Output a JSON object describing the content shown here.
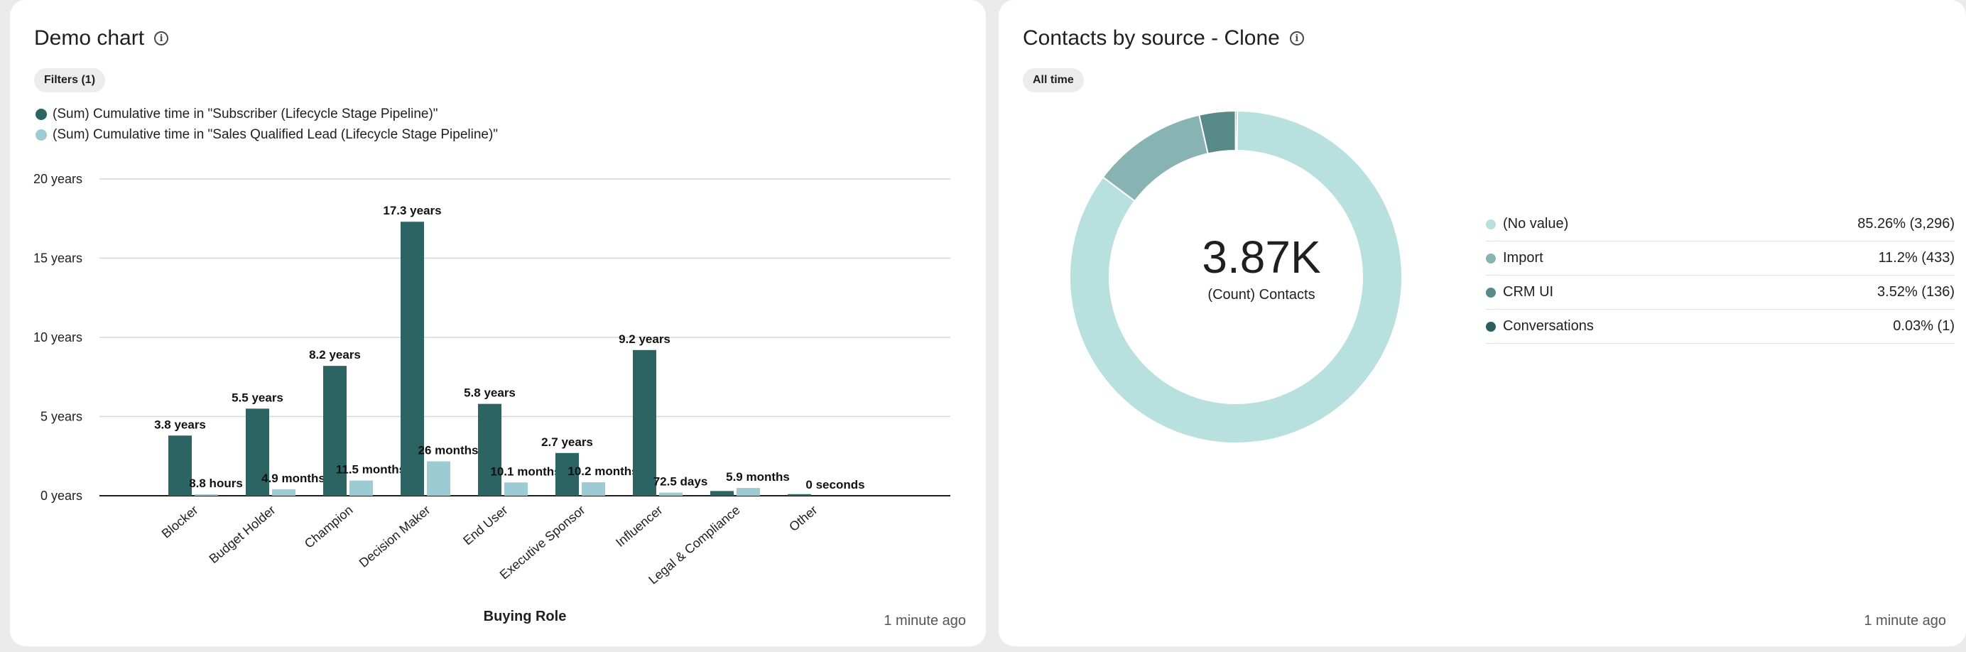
{
  "left_card": {
    "title": "Demo chart",
    "filter_label": "Filters (1)",
    "updated": "1 minute ago"
  },
  "right_card": {
    "title": "Contacts by source - Clone",
    "filter_label": "All time",
    "updated": "1 minute ago",
    "center_value": "3.87K",
    "center_label": "(Count) Contacts"
  },
  "chart_data": [
    {
      "type": "bar",
      "title": "Demo chart",
      "xlabel": "Buying Role",
      "ylabel": "",
      "y_unit": "years",
      "ylim": [
        0,
        20
      ],
      "yticks": [
        0,
        5,
        10,
        15,
        20
      ],
      "ytick_labels": [
        "0 years",
        "5 years",
        "10 years",
        "15 years",
        "20 years"
      ],
      "grid": true,
      "legend_position": "top-left",
      "categories": [
        "Blocker",
        "Budget Holder",
        "Champion",
        "Decision Maker",
        "End User",
        "Executive Sponsor",
        "Influencer",
        "Legal & Compliance",
        "Other"
      ],
      "series": [
        {
          "name": "(Sum) Cumulative time in \"Subscriber (Lifecycle Stage Pipeline)\"",
          "color": "#2b6463",
          "values": [
            3.8,
            5.5,
            8.2,
            17.3,
            5.8,
            2.7,
            9.2,
            0.3,
            0.1
          ],
          "labels": [
            "3.8 years",
            "5.5 years",
            "8.2 years",
            "17.3 years",
            "5.8 years",
            "2.7 years",
            "9.2 years",
            "",
            ""
          ]
        },
        {
          "name": "(Sum) Cumulative time in \"Sales Qualified Lead (Lifecycle Stage Pipeline)\"",
          "color": "#9dcbd3",
          "values": [
            0.001,
            0.41,
            0.96,
            2.17,
            0.84,
            0.85,
            0.2,
            0.49,
            0
          ],
          "labels": [
            "8.8 hours",
            "4.9 months",
            "11.5 months",
            "26 months",
            "10.1 months",
            "10.2 months",
            "72.5 days",
            "5.9 months",
            "0 seconds"
          ]
        }
      ]
    },
    {
      "type": "pie",
      "title": "Contacts by source - Clone",
      "total_label": "3.87K",
      "legend_position": "right",
      "slices": [
        {
          "label": "(No value)",
          "value": 3296,
          "display": "85.26% (3,296)",
          "color": "#b7e0df"
        },
        {
          "label": "Import",
          "value": 433,
          "display": "11.2% (433)",
          "color": "#87b4b2"
        },
        {
          "label": "CRM UI",
          "value": 136,
          "display": "3.52% (136)",
          "color": "#578989"
        },
        {
          "label": "Conversations",
          "value": 1,
          "display": "0.03% (1)",
          "color": "#2b5e5d"
        }
      ]
    }
  ]
}
